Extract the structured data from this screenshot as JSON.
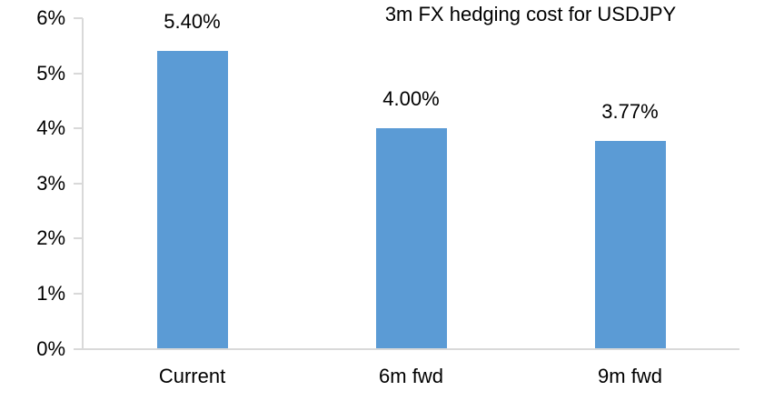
{
  "chart_data": {
    "type": "bar",
    "title": "3m FX hedging cost for USDJPY",
    "categories": [
      "Current",
      "6m fwd",
      "9m fwd"
    ],
    "values": [
      5.4,
      4.0,
      3.77
    ],
    "data_labels": [
      "5.40%",
      "4.00%",
      "3.77%"
    ],
    "ytick_labels": [
      "0%",
      "1%",
      "2%",
      "3%",
      "4%",
      "5%",
      "6%"
    ],
    "ytick_values": [
      0,
      1,
      2,
      3,
      4,
      5,
      6
    ],
    "ylim": [
      0,
      6
    ],
    "xlabel": "",
    "ylabel": "",
    "grid": false,
    "legend_position": "none",
    "bar_color": "#5b9bd5",
    "axis_color": "#d9d9d9",
    "text_color": "#000000",
    "background_color": "#ffffff"
  }
}
